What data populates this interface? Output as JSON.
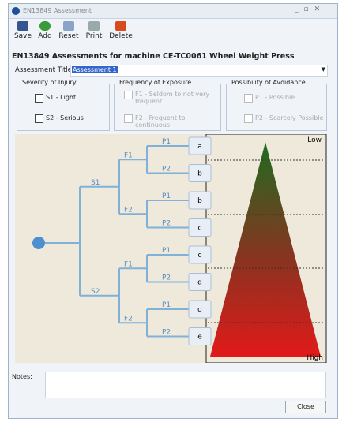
{
  "window": {
    "title": "EN13849 Assessment"
  },
  "toolbar": {
    "buttons": [
      "Save",
      "Add",
      "Reset",
      "Print",
      "Delete"
    ]
  },
  "header": {
    "heading": "EN13849 Assessments for machine CE-TC0061 Wheel Weight Press"
  },
  "assessment": {
    "label": "Assessment Title:",
    "value": "Assessment 1"
  },
  "groups": [
    {
      "title": "Severity of Injury",
      "options": [
        "S1 - Light",
        "S2 - Serious"
      ]
    },
    {
      "title": "Frequency of Exposure",
      "options": [
        "F1 - Seldom to not very frequent",
        "F2 - Frequent to continuous"
      ]
    },
    {
      "title": "Possibility of Avoidance",
      "options": [
        "P1 - Possible",
        "P2 - Scarcely Possible"
      ]
    }
  ],
  "tree": {
    "severity": [
      "S1",
      "S2"
    ],
    "frequency": [
      "F1",
      "F2",
      "F1",
      "F2"
    ],
    "avoidance": [
      "P1",
      "P2",
      "P1",
      "P2",
      "P1",
      "P2",
      "P1",
      "P2"
    ],
    "results": [
      "a",
      "b",
      "b",
      "c",
      "c",
      "d",
      "d",
      "e"
    ]
  },
  "scale": {
    "low": "Low",
    "high": "High"
  },
  "notes": {
    "label": "Notes:"
  },
  "footer": {
    "close": "Close"
  }
}
